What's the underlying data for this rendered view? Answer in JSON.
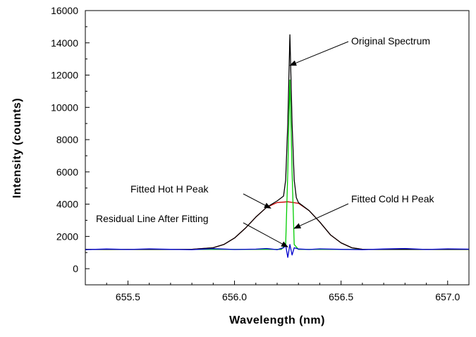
{
  "chart_data": {
    "type": "line",
    "xlabel": "Wavelength (nm)",
    "ylabel": "Intensity (counts)",
    "xlim": [
      655.3,
      657.1
    ],
    "ylim": [
      -1000,
      16000
    ],
    "x_ticks": [
      "655.5",
      "656.0",
      "656.5",
      "657.0"
    ],
    "x_tick_values": [
      655.5,
      656.0,
      656.5,
      657.0
    ],
    "y_ticks": [
      "0",
      "2000",
      "4000",
      "6000",
      "8000",
      "10000",
      "12000",
      "14000",
      "16000"
    ],
    "y_tick_values": [
      0,
      2000,
      4000,
      6000,
      8000,
      10000,
      12000,
      14000,
      16000
    ],
    "grid": false,
    "series": [
      {
        "key": "hot",
        "color": "#cc0000",
        "x": [
          655.3,
          655.8,
          655.9,
          655.95,
          656.0,
          656.05,
          656.1,
          656.15,
          656.2,
          656.25,
          656.3,
          656.35,
          656.4,
          656.45,
          656.5,
          656.55,
          656.6,
          657.1
        ],
        "y": [
          1200,
          1200,
          1300,
          1500,
          1900,
          2500,
          3200,
          3800,
          4100,
          4150,
          4050,
          3600,
          2900,
          2100,
          1600,
          1300,
          1200,
          1200
        ]
      },
      {
        "key": "cold",
        "color": "#00cc00",
        "x": [
          655.3,
          656.22,
          656.24,
          656.25,
          656.26,
          656.27,
          656.28,
          656.3,
          657.1
        ],
        "y": [
          1200,
          1200,
          1500,
          6000,
          11700,
          6000,
          1500,
          1200,
          1200
        ]
      },
      {
        "key": "original",
        "color": "#000000",
        "x": [
          655.3,
          655.8,
          655.9,
          655.95,
          656.0,
          656.05,
          656.1,
          656.15,
          656.2,
          656.23,
          656.24,
          656.25,
          656.26,
          656.27,
          656.28,
          656.29,
          656.3,
          656.35,
          656.4,
          656.45,
          656.5,
          656.55,
          656.6,
          657.1
        ],
        "y": [
          1200,
          1200,
          1300,
          1500,
          1900,
          2500,
          3200,
          3800,
          4200,
          4500,
          5500,
          9000,
          14500,
          9000,
          5500,
          4400,
          4100,
          3600,
          2900,
          2100,
          1600,
          1300,
          1200,
          1200
        ]
      },
      {
        "key": "residual",
        "color": "#0000cc",
        "x": [
          655.3,
          655.4,
          655.5,
          655.6,
          655.7,
          655.8,
          655.9,
          656.0,
          656.1,
          656.15,
          656.2,
          656.23,
          656.24,
          656.25,
          656.26,
          656.27,
          656.28,
          656.3,
          656.35,
          656.4,
          656.5,
          656.6,
          656.7,
          656.8,
          656.9,
          657.0,
          657.1
        ],
        "y": [
          1180,
          1220,
          1190,
          1230,
          1200,
          1180,
          1240,
          1190,
          1210,
          1250,
          1180,
          1300,
          1450,
          700,
          1500,
          850,
          1300,
          1220,
          1190,
          1230,
          1200,
          1180,
          1220,
          1250,
          1190,
          1230,
          1210
        ]
      }
    ],
    "annotations": [
      {
        "key": "original",
        "text": "Original Spectrum",
        "ax": 656.26,
        "ay": 12600
      },
      {
        "key": "hot",
        "text": "Fitted Hot  H  Peak",
        "ax": 656.17,
        "ay": 3750
      },
      {
        "key": "cold",
        "text": "Fitted Cold  H  Peak",
        "ax": 656.28,
        "ay": 2500
      },
      {
        "key": "residual",
        "text": "Residual Line After Fitting",
        "ax": 656.25,
        "ay": 1350
      }
    ]
  }
}
